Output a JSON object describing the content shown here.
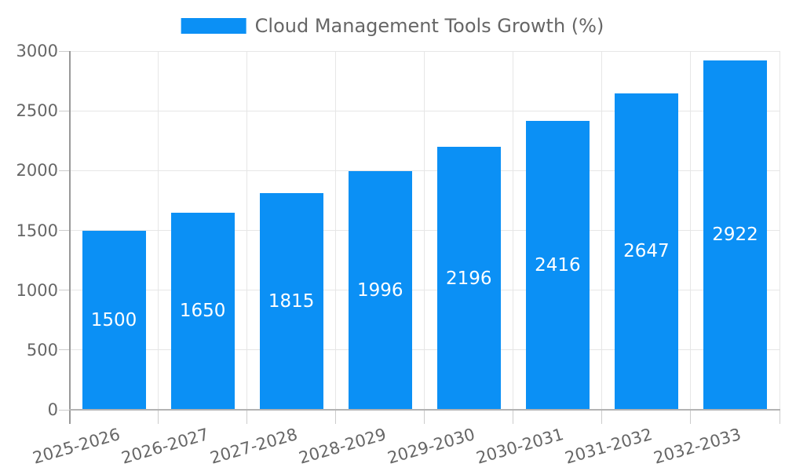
{
  "chart_data": {
    "type": "bar",
    "title": "Cloud Management Tools Growth (%)",
    "categories": [
      "2025-2026",
      "2026-2027",
      "2027-2028",
      "2028-2029",
      "2029-2030",
      "2030-2031",
      "2031-2032",
      "2032-2033"
    ],
    "values": [
      1500,
      1650,
      1815,
      1996,
      2196,
      2416,
      2647,
      2922
    ],
    "xlabel": "",
    "ylabel": "",
    "ylim": [
      0,
      3000
    ],
    "yticks": [
      0,
      500,
      1000,
      1500,
      2000,
      2500,
      3000
    ],
    "grid": true,
    "legend_position": "top-center",
    "bar_label_position": "center",
    "colors": {
      "bar": "#0b90f5",
      "bar_label": "#ffffff",
      "text": "#666666",
      "gridline": "#e6e6e6",
      "y_axis": "#999999",
      "x_axis": "#b3b3b3",
      "tick": "#cccccc",
      "background": "#ffffff"
    }
  }
}
